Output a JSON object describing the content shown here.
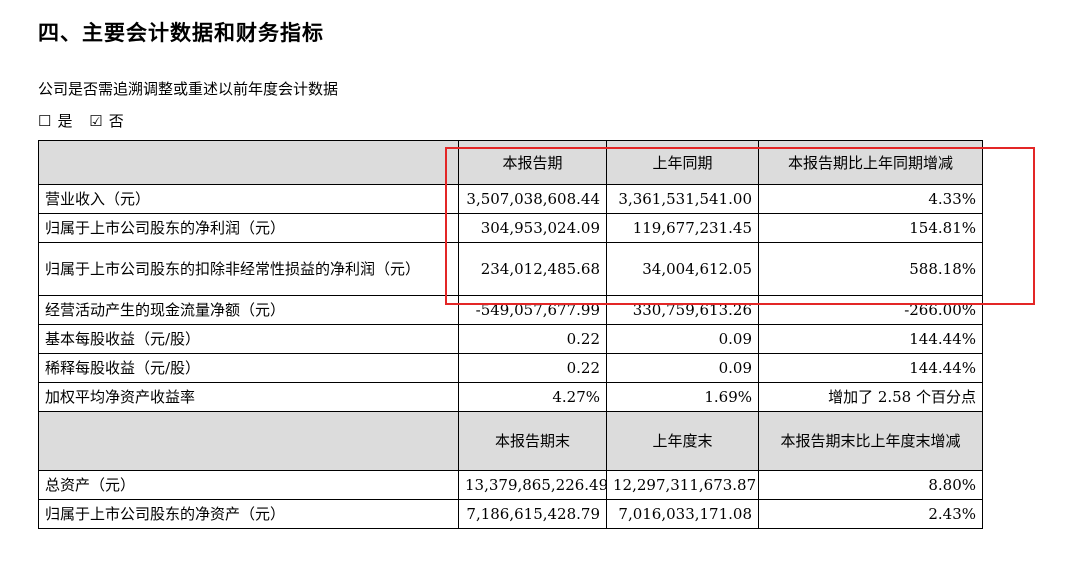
{
  "title": "四、主要会计数据和财务指标",
  "question": "公司是否需追溯调整或重述以前年度会计数据",
  "options": [
    {
      "mark": "☐",
      "label": "是"
    },
    {
      "mark": "☑",
      "label": "否"
    }
  ],
  "header1": [
    "本报告期",
    "上年同期",
    "本报告期比上年同期增减"
  ],
  "rows1": [
    {
      "label": "营业收入（元）",
      "cur": "3,507,038,608.44",
      "prev": "3,361,531,541.00",
      "chg": "4.33%"
    },
    {
      "label": "归属于上市公司股东的净利润（元）",
      "cur": "304,953,024.09",
      "prev": "119,677,231.45",
      "chg": "154.81%"
    },
    {
      "label": "归属于上市公司股东的扣除非经常性损益的净利润（元）",
      "cur": "234,012,485.68",
      "prev": "34,004,612.05",
      "chg": "588.18%"
    },
    {
      "label": "经营活动产生的现金流量净额（元）",
      "cur": "-549,057,677.99",
      "prev": "330,759,613.26",
      "chg": "-266.00%"
    },
    {
      "label": "基本每股收益（元/股）",
      "cur": "0.22",
      "prev": "0.09",
      "chg": "144.44%"
    },
    {
      "label": "稀释每股收益（元/股）",
      "cur": "0.22",
      "prev": "0.09",
      "chg": "144.44%"
    },
    {
      "label": "加权平均净资产收益率",
      "cur": "4.27%",
      "prev": "1.69%",
      "chg": "增加了 2.58 个百分点"
    }
  ],
  "header2": [
    "本报告期末",
    "上年度末",
    "本报告期末比上年度末增减"
  ],
  "rows2": [
    {
      "label": "总资产（元）",
      "cur": "13,379,865,226.49",
      "prev": "12,297,311,673.87",
      "chg": "8.80%"
    },
    {
      "label": "归属于上市公司股东的净资产（元）",
      "cur": "7,186,615,428.79",
      "prev": "7,016,033,171.08",
      "chg": "2.43%"
    }
  ],
  "highlight_color": "#e32626"
}
